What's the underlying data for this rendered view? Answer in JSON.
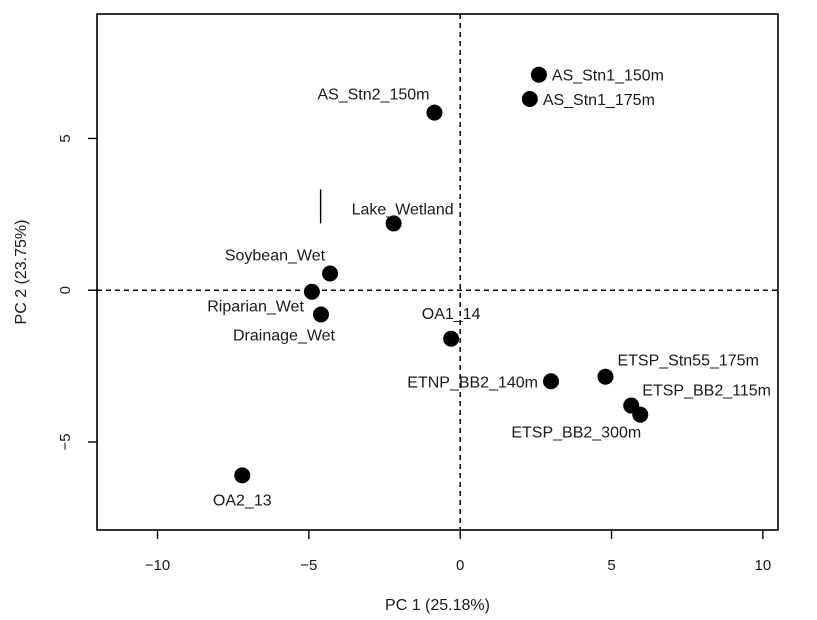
{
  "chart_data": {
    "type": "scatter",
    "xlabel": "PC 1 (25.18%)",
    "ylabel": "PC 2 (23.75%)",
    "xlim": [
      -12,
      10.5
    ],
    "ylim": [
      -7.9,
      9.1
    ],
    "xticks": [
      -10,
      -5,
      0,
      5,
      10
    ],
    "yticks": [
      -5,
      0,
      5
    ],
    "reference_lines": {
      "x": 0,
      "y": 0,
      "style": "dashed"
    },
    "grid": false,
    "point_color": "#000000",
    "points": [
      {
        "label": "AS_Stn1_150m",
        "x": 2.6,
        "y": 7.1,
        "label_side": "right"
      },
      {
        "label": "AS_Stn1_175m",
        "x": 2.3,
        "y": 6.3,
        "label_side": "right"
      },
      {
        "label": "AS_Stn2_150m",
        "x": -0.85,
        "y": 5.85,
        "label_side": "above-left"
      },
      {
        "label": "Lake_Wetland",
        "x": -2.2,
        "y": 2.2,
        "label_side": "above-left"
      },
      {
        "label": "Soybean_Wet",
        "x": -4.3,
        "y": 0.55,
        "label_side": "above-left"
      },
      {
        "label": "Riparian_Wet",
        "x": -4.9,
        "y": -0.05,
        "label_side": "below-left"
      },
      {
        "label": "Drainage_Wet",
        "x": -4.6,
        "y": -0.8,
        "label_side": "below-left"
      },
      {
        "label": "OA1_14",
        "x": -0.3,
        "y": -1.6,
        "label_side": "above"
      },
      {
        "label": "ETNP_BB2_140m",
        "x": 3.0,
        "y": -3.0,
        "label_side": "left"
      },
      {
        "label": "ETSP_Stn55_175m",
        "x": 4.8,
        "y": -2.85,
        "label_side": "above-right"
      },
      {
        "label": "ETSP_BB2_115m",
        "x": 5.95,
        "y": -4.1,
        "label_side": "above-right"
      },
      {
        "label": "ETSP_BB2_300m",
        "x": 5.65,
        "y": -3.8,
        "label_side": "below-left"
      },
      {
        "label": "OA2_13",
        "x": -7.2,
        "y": -6.1,
        "label_side": "below"
      }
    ]
  }
}
